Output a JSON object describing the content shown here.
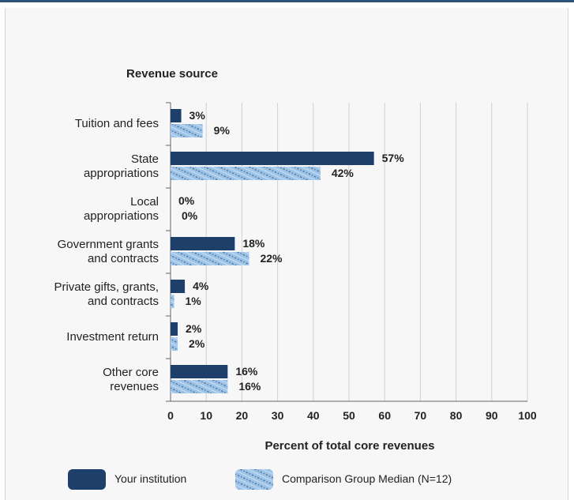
{
  "chart_data": {
    "type": "bar",
    "orientation": "horizontal",
    "title": "Revenue source",
    "xlabel": "Percent of total core revenues",
    "xlim": [
      0,
      100
    ],
    "xticks": [
      0,
      10,
      20,
      30,
      40,
      50,
      60,
      70,
      80,
      90,
      100
    ],
    "grid": true,
    "legend_placement": "bottom",
    "categories": [
      [
        "Tuition and fees"
      ],
      [
        "State",
        "appropriations"
      ],
      [
        "Local",
        "appropriations"
      ],
      [
        "Government grants",
        "and contracts"
      ],
      [
        "Private gifts, grants,",
        "and contracts"
      ],
      [
        "Investment return"
      ],
      [
        "Other core",
        "revenues"
      ]
    ],
    "series": [
      {
        "name": "Your institution",
        "values": [
          3,
          57,
          0,
          18,
          4,
          2,
          16
        ],
        "color": "#1f3f6b"
      },
      {
        "name": "Comparison Group Median (N=12)",
        "values": [
          9,
          42,
          0,
          22,
          1,
          2,
          16
        ],
        "color": "#9fc3e6"
      }
    ],
    "value_suffix": "%"
  }
}
